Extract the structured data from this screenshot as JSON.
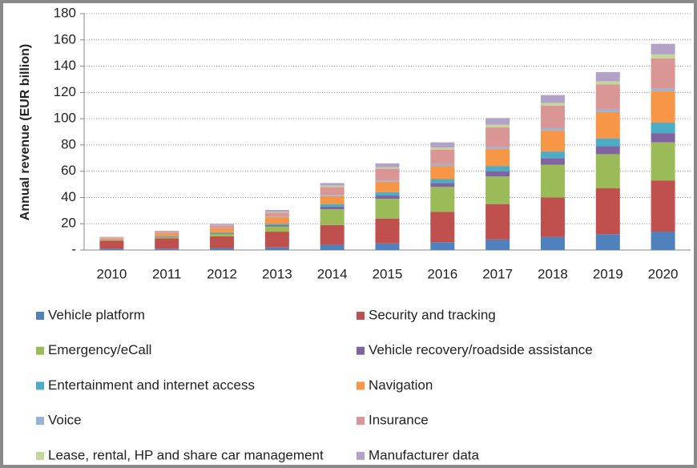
{
  "chart_data": {
    "type": "stacked_bar",
    "y_label": "Annual revenue (EUR billion)",
    "categories": [
      "2010",
      "2011",
      "2012",
      "2013",
      "2014",
      "2015",
      "2016",
      "2017",
      "2018",
      "2019",
      "2020"
    ],
    "series": [
      {
        "name": "Vehicle platform",
        "color": "#4f81bd",
        "values": [
          1,
          1,
          1.5,
          2,
          4,
          5,
          6,
          8,
          10,
          12,
          14
        ]
      },
      {
        "name": "Security and tracking",
        "color": "#c0504d",
        "values": [
          6,
          8,
          9,
          12,
          15,
          19,
          23,
          27,
          30,
          35,
          39
        ]
      },
      {
        "name": "Emergency/eCall",
        "color": "#9bbb59",
        "values": [
          0.5,
          1,
          2,
          4,
          12,
          15,
          19,
          21,
          25,
          26,
          29
        ]
      },
      {
        "name": "Vehicle recovery/roadside assistance",
        "color": "#8064a2",
        "values": [
          0.3,
          0.5,
          0.5,
          1,
          2,
          2.5,
          3,
          4,
          5,
          6,
          7
        ]
      },
      {
        "name": "Entertainment and internet access",
        "color": "#4bacc6",
        "values": [
          0.2,
          0.3,
          0.5,
          1,
          2,
          2.5,
          3,
          4,
          5,
          6,
          8
        ]
      },
      {
        "name": "Navigation",
        "color": "#f79646",
        "values": [
          1,
          2,
          3,
          5,
          6,
          8,
          10,
          13,
          16,
          20,
          24
        ]
      },
      {
        "name": "Voice",
        "color": "#95b3d7",
        "values": [
          0.1,
          0.2,
          0.3,
          0.5,
          1,
          1,
          1.5,
          1.5,
          2,
          2,
          2
        ]
      },
      {
        "name": "Insurance",
        "color": "#d99694",
        "values": [
          0.5,
          1,
          2,
          3,
          6,
          9,
          11,
          15,
          17,
          19,
          23
        ]
      },
      {
        "name": "Lease, rental, HP and share car management",
        "color": "#c3d69b",
        "values": [
          0.1,
          0.2,
          0.2,
          0.5,
          1,
          1,
          1.5,
          2,
          2,
          2.5,
          3
        ]
      },
      {
        "name": "Manufacturer data",
        "color": "#b3a2c7",
        "values": [
          0.3,
          0.5,
          1,
          1.5,
          2,
          3,
          4,
          5,
          6,
          7,
          8
        ]
      }
    ],
    "ylim": [
      0,
      180
    ],
    "yticks": [
      {
        "value": 0,
        "label": "-"
      },
      20,
      40,
      60,
      80,
      100,
      120,
      140,
      160,
      180
    ],
    "grid": true,
    "legend": "bottom"
  }
}
